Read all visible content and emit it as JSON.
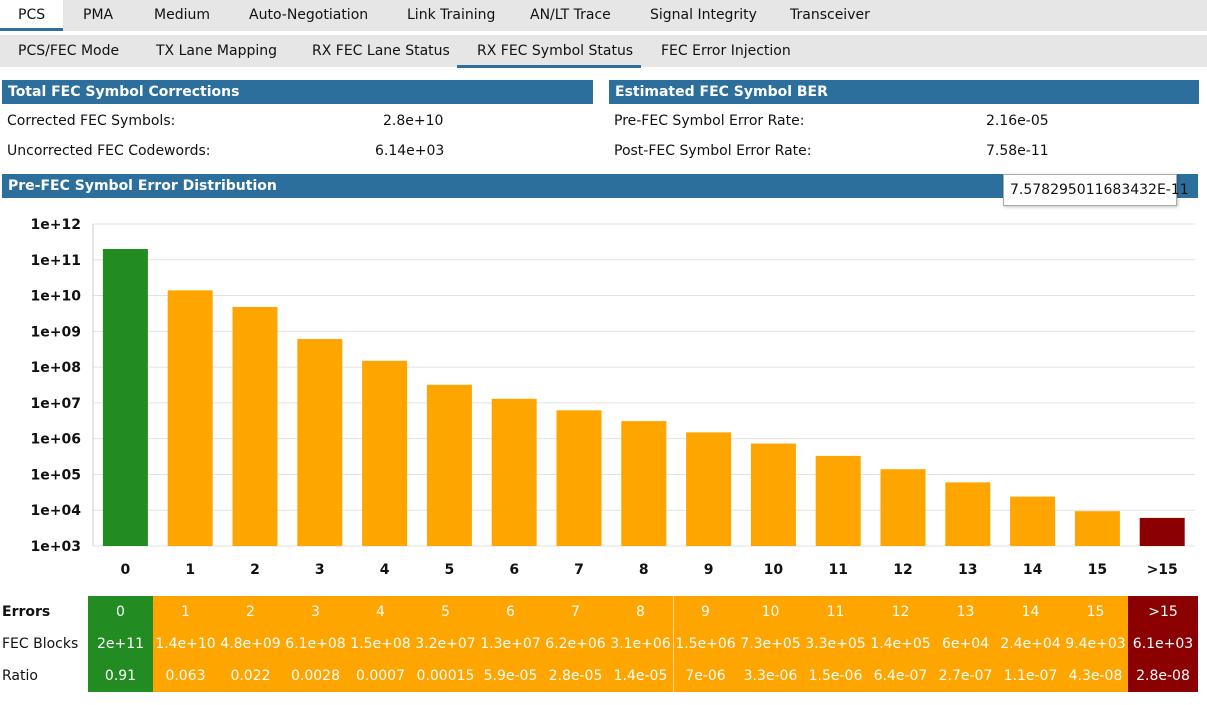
{
  "top_tabs": [
    {
      "label": "PCS",
      "active": true
    },
    {
      "label": "PMA",
      "active": false
    },
    {
      "label": "Medium",
      "active": false
    },
    {
      "label": "Auto-Negotiation",
      "active": false
    },
    {
      "label": "Link Training",
      "active": false
    },
    {
      "label": "AN/LT Trace",
      "active": false
    },
    {
      "label": "Signal Integrity",
      "active": false
    },
    {
      "label": "Transceiver",
      "active": false
    }
  ],
  "sub_tabs": [
    {
      "label": "PCS/FEC Mode",
      "active": false
    },
    {
      "label": "TX Lane Mapping",
      "active": false
    },
    {
      "label": "RX FEC Lane Status",
      "active": false
    },
    {
      "label": "RX FEC Symbol Status",
      "active": true
    },
    {
      "label": "FEC Error Injection",
      "active": false
    }
  ],
  "corrections": {
    "title": "Total FEC Symbol Corrections",
    "rows": [
      {
        "label": "Corrected FEC Symbols:",
        "value": "2.8e+10"
      },
      {
        "label": "Uncorrected FEC Codewords:",
        "value": "6.14e+03"
      }
    ]
  },
  "ber": {
    "title": "Estimated FEC Symbol BER",
    "rows": [
      {
        "label": "Pre-FEC Symbol Error Rate:",
        "value": "2.16e-05"
      },
      {
        "label": "Post-FEC Symbol Error Rate:",
        "value": "7.58e-11"
      }
    ]
  },
  "tooltip": "7.578295011683432E-11",
  "distribution_title": "Pre-FEC Symbol Error Distribution",
  "colors": {
    "green": "#228b22",
    "orange": "#ffa500",
    "darkred": "#8b0000",
    "header": "#2d6f9c"
  },
  "chart_data": {
    "type": "bar",
    "title": "Pre-FEC Symbol Error Distribution",
    "y_scale": "log",
    "ylim": [
      1000,
      1000000000000
    ],
    "y_ticks": [
      "1e+03",
      "1e+04",
      "1e+05",
      "1e+06",
      "1e+07",
      "1e+08",
      "1e+09",
      "1e+10",
      "1e+11",
      "1e+12"
    ],
    "grid": true,
    "categories": [
      "0",
      "1",
      "2",
      "3",
      "4",
      "5",
      "6",
      "7",
      "8",
      "9",
      "10",
      "11",
      "12",
      "13",
      "14",
      "15",
      ">15"
    ],
    "values": [
      200000000000.0,
      14000000000.0,
      4800000000.0,
      610000000.0,
      150000000.0,
      32000000.0,
      13000000.0,
      6200000.0,
      3100000.0,
      1500000.0,
      730000.0,
      330000.0,
      140000.0,
      60000.0,
      24000.0,
      9400.0,
      6100.0
    ],
    "bar_colors": [
      "green",
      "orange",
      "orange",
      "orange",
      "orange",
      "orange",
      "orange",
      "orange",
      "orange",
      "orange",
      "orange",
      "orange",
      "orange",
      "orange",
      "orange",
      "orange",
      "darkred"
    ]
  },
  "table": {
    "row_labels": [
      "Errors",
      "FEC Blocks",
      "Ratio"
    ],
    "errors": [
      "0",
      "1",
      "2",
      "3",
      "4",
      "5",
      "6",
      "7",
      "8",
      "9",
      "10",
      "11",
      "12",
      "13",
      "14",
      "15",
      ">15"
    ],
    "fec_blocks": [
      "2e+11",
      "1.4e+10",
      "4.8e+09",
      "6.1e+08",
      "1.5e+08",
      "3.2e+07",
      "1.3e+07",
      "6.2e+06",
      "3.1e+06",
      "1.5e+06",
      "7.3e+05",
      "3.3e+05",
      "1.4e+05",
      "6e+04",
      "2.4e+04",
      "9.4e+03",
      "6.1e+03"
    ],
    "ratio": [
      "0.91",
      "0.063",
      "0.022",
      "0.0028",
      "0.0007",
      "0.00015",
      "5.9e-05",
      "2.8e-05",
      "1.4e-05",
      "7e-06",
      "3.3e-06",
      "1.5e-06",
      "6.4e-07",
      "2.7e-07",
      "1.1e-07",
      "4.3e-08",
      "2.8e-08"
    ]
  }
}
